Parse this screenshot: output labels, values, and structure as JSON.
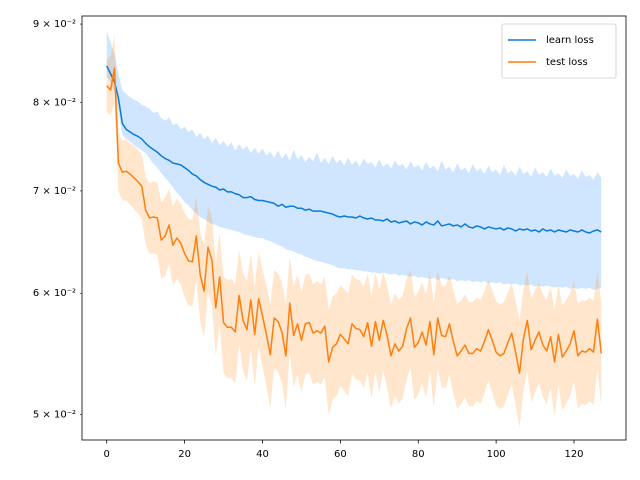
{
  "chart_data": {
    "type": "line",
    "y_scale": "log",
    "legend_loc": "upper right",
    "band_alpha": 0.22,
    "xlim": [
      -6.35,
      133.35
    ],
    "ylim": [
      0.0481,
      0.0911
    ],
    "xticks": [
      0,
      20,
      40,
      60,
      80,
      100,
      120
    ],
    "yticks": [
      {
        "value": 0.05,
        "label": "5 × 10⁻²"
      },
      {
        "value": 0.06,
        "label": "6 × 10⁻²"
      },
      {
        "value": 0.07,
        "label": "7 × 10⁻²"
      },
      {
        "value": 0.08,
        "label": "8 × 10⁻²"
      },
      {
        "value": 0.09,
        "label": "9 × 10⁻²"
      }
    ],
    "x": [
      0,
      1,
      2,
      3,
      4,
      5,
      6,
      7,
      8,
      9,
      10,
      11,
      12,
      13,
      14,
      15,
      16,
      17,
      18,
      19,
      20,
      21,
      22,
      23,
      24,
      25,
      26,
      27,
      28,
      29,
      30,
      31,
      32,
      33,
      34,
      35,
      36,
      37,
      38,
      39,
      40,
      41,
      42,
      43,
      44,
      45,
      46,
      47,
      48,
      49,
      50,
      51,
      52,
      53,
      54,
      55,
      56,
      57,
      58,
      59,
      60,
      61,
      62,
      63,
      64,
      65,
      66,
      67,
      68,
      69,
      70,
      71,
      72,
      73,
      74,
      75,
      76,
      77,
      78,
      79,
      80,
      81,
      82,
      83,
      84,
      85,
      86,
      87,
      88,
      89,
      90,
      91,
      92,
      93,
      94,
      95,
      96,
      97,
      98,
      99,
      100,
      101,
      102,
      103,
      104,
      105,
      106,
      107,
      108,
      109,
      110,
      111,
      112,
      113,
      114,
      115,
      116,
      117,
      118,
      119,
      120,
      121,
      122,
      123,
      124,
      125,
      126,
      127
    ],
    "series": [
      {
        "name": "learn loss",
        "color": "#0a7ad8",
        "band_color": "#2b8cff",
        "values": [
          0.0845,
          0.0835,
          0.0825,
          0.0805,
          0.0775,
          0.0768,
          0.0765,
          0.0762,
          0.076,
          0.0757,
          0.0752,
          0.0748,
          0.0745,
          0.0742,
          0.0738,
          0.0735,
          0.0733,
          0.073,
          0.0729,
          0.0728,
          0.0725,
          0.0722,
          0.0718,
          0.0716,
          0.0712,
          0.0709,
          0.0707,
          0.0705,
          0.0704,
          0.0701,
          0.0702,
          0.0699,
          0.0699,
          0.0697,
          0.0696,
          0.0693,
          0.0693,
          0.0694,
          0.0691,
          0.069,
          0.069,
          0.0689,
          0.0688,
          0.0687,
          0.0684,
          0.0686,
          0.0683,
          0.0684,
          0.0684,
          0.0682,
          0.0682,
          0.068,
          0.0681,
          0.0679,
          0.0679,
          0.0679,
          0.0678,
          0.0677,
          0.0676,
          0.0674,
          0.0673,
          0.0674,
          0.0673,
          0.0673,
          0.0672,
          0.0674,
          0.0672,
          0.0671,
          0.0672,
          0.067,
          0.067,
          0.0669,
          0.0671,
          0.0668,
          0.0669,
          0.0667,
          0.0668,
          0.0669,
          0.0666,
          0.0668,
          0.0667,
          0.0665,
          0.0668,
          0.0666,
          0.0665,
          0.0669,
          0.0664,
          0.0665,
          0.0666,
          0.0664,
          0.0665,
          0.0663,
          0.0666,
          0.0663,
          0.0662,
          0.0664,
          0.0663,
          0.0661,
          0.0663,
          0.0662,
          0.0661,
          0.0662,
          0.066,
          0.0662,
          0.0661,
          0.0659,
          0.0661,
          0.066,
          0.0661,
          0.0659,
          0.066,
          0.0658,
          0.0661,
          0.0659,
          0.066,
          0.0658,
          0.066,
          0.0659,
          0.0658,
          0.066,
          0.0659,
          0.0658,
          0.066,
          0.0658,
          0.0657,
          0.0659,
          0.066,
          0.0658
        ],
        "upper": [
          0.0891,
          0.0875,
          0.086,
          0.0835,
          0.0815,
          0.081,
          0.0806,
          0.0803,
          0.0801,
          0.0797,
          0.0795,
          0.0792,
          0.0787,
          0.0789,
          0.0781,
          0.0778,
          0.0782,
          0.0773,
          0.0775,
          0.0768,
          0.0771,
          0.0765,
          0.0768,
          0.0759,
          0.0764,
          0.0757,
          0.0761,
          0.0752,
          0.0758,
          0.075,
          0.0755,
          0.0748,
          0.0753,
          0.0744,
          0.0751,
          0.0745,
          0.0749,
          0.0741,
          0.0747,
          0.074,
          0.0746,
          0.0738,
          0.0743,
          0.0736,
          0.0744,
          0.0735,
          0.0741,
          0.0733,
          0.0745,
          0.0734,
          0.0739,
          0.0731,
          0.0737,
          0.0732,
          0.0742,
          0.073,
          0.0736,
          0.0729,
          0.0738,
          0.073,
          0.0734,
          0.0727,
          0.0736,
          0.0728,
          0.0733,
          0.0726,
          0.0735,
          0.0729,
          0.0731,
          0.0725,
          0.0734,
          0.0726,
          0.073,
          0.0724,
          0.0733,
          0.0727,
          0.0729,
          0.0723,
          0.0732,
          0.0725,
          0.0728,
          0.0722,
          0.0731,
          0.0724,
          0.0727,
          0.0721,
          0.0733,
          0.0723,
          0.0726,
          0.072,
          0.073,
          0.0722,
          0.0725,
          0.0719,
          0.0729,
          0.0721,
          0.0724,
          0.0718,
          0.0727,
          0.072,
          0.0723,
          0.0717,
          0.0728,
          0.0719,
          0.0722,
          0.0716,
          0.0726,
          0.0718,
          0.0721,
          0.0715,
          0.0725,
          0.0717,
          0.072,
          0.0715,
          0.0724,
          0.0716,
          0.0719,
          0.0714,
          0.0723,
          0.0716,
          0.0718,
          0.0713,
          0.0722,
          0.0715,
          0.0717,
          0.0712,
          0.072,
          0.0714
        ],
        "lower": [
          0.0832,
          0.0825,
          0.0812,
          0.079,
          0.0762,
          0.0757,
          0.0754,
          0.075,
          0.0747,
          0.0744,
          0.0741,
          0.0735,
          0.0729,
          0.0725,
          0.0719,
          0.0714,
          0.0709,
          0.0704,
          0.0698,
          0.0694,
          0.0688,
          0.0685,
          0.068,
          0.0677,
          0.0673,
          0.0671,
          0.0668,
          0.0666,
          0.0665,
          0.0663,
          0.0662,
          0.0661,
          0.066,
          0.0659,
          0.0658,
          0.0656,
          0.0655,
          0.0654,
          0.0653,
          0.0652,
          0.0652,
          0.065,
          0.0649,
          0.0647,
          0.0645,
          0.0644,
          0.0641,
          0.064,
          0.0639,
          0.0637,
          0.0636,
          0.0634,
          0.0633,
          0.0631,
          0.063,
          0.0629,
          0.0628,
          0.0627,
          0.0626,
          0.0624,
          0.0623,
          0.0623,
          0.0622,
          0.0622,
          0.0621,
          0.0621,
          0.062,
          0.062,
          0.0619,
          0.0619,
          0.0618,
          0.0619,
          0.0618,
          0.0617,
          0.0618,
          0.0616,
          0.0617,
          0.0616,
          0.0615,
          0.0616,
          0.0614,
          0.0615,
          0.0614,
          0.0613,
          0.0614,
          0.0612,
          0.0614,
          0.0613,
          0.0612,
          0.0613,
          0.0611,
          0.0612,
          0.0611,
          0.0612,
          0.061,
          0.0611,
          0.061,
          0.0611,
          0.0609,
          0.061,
          0.0609,
          0.061,
          0.0608,
          0.0609,
          0.0608,
          0.0609,
          0.0607,
          0.0608,
          0.0607,
          0.0608,
          0.0606,
          0.0607,
          0.0606,
          0.0607,
          0.0606,
          0.0605,
          0.0606,
          0.0605,
          0.0606,
          0.0604,
          0.0605,
          0.0604,
          0.0605,
          0.0604,
          0.0605,
          0.0603,
          0.0604,
          0.0605
        ]
      },
      {
        "name": "test loss",
        "color": "#ff7f0e",
        "band_color": "#ff8c1a",
        "values": [
          0.082,
          0.0815,
          0.0842,
          0.073,
          0.072,
          0.0721,
          0.0718,
          0.0714,
          0.071,
          0.0705,
          0.068,
          0.0672,
          0.0673,
          0.0672,
          0.065,
          0.0654,
          0.0665,
          0.0645,
          0.0652,
          0.0647,
          0.0637,
          0.063,
          0.0629,
          0.0654,
          0.0617,
          0.0602,
          0.0643,
          0.0631,
          0.0587,
          0.0615,
          0.0574,
          0.057,
          0.057,
          0.0566,
          0.0598,
          0.0576,
          0.0568,
          0.0594,
          0.0564,
          0.0595,
          0.058,
          0.0564,
          0.0547,
          0.0578,
          0.0575,
          0.0566,
          0.0546,
          0.0591,
          0.0563,
          0.0573,
          0.0559,
          0.0573,
          0.0574,
          0.0565,
          0.0567,
          0.0565,
          0.0571,
          0.0541,
          0.0553,
          0.0556,
          0.0564,
          0.056,
          0.0556,
          0.0573,
          0.0569,
          0.0568,
          0.0562,
          0.0574,
          0.0554,
          0.0575,
          0.0559,
          0.0576,
          0.0563,
          0.0546,
          0.0556,
          0.055,
          0.0554,
          0.0569,
          0.0578,
          0.0553,
          0.0557,
          0.0566,
          0.0555,
          0.0575,
          0.0547,
          0.0578,
          0.0563,
          0.0562,
          0.0573,
          0.0558,
          0.0546,
          0.055,
          0.0555,
          0.0548,
          0.0548,
          0.0552,
          0.055,
          0.0558,
          0.0568,
          0.0559,
          0.0549,
          0.0546,
          0.0548,
          0.0557,
          0.0565,
          0.0549,
          0.0532,
          0.056,
          0.0576,
          0.0551,
          0.0559,
          0.0566,
          0.0555,
          0.055,
          0.0562,
          0.0541,
          0.0564,
          0.0545,
          0.055,
          0.0556,
          0.0567,
          0.0546,
          0.055,
          0.0549,
          0.0552,
          0.0549,
          0.0577,
          0.0548
        ],
        "upper": [
          0.0852,
          0.0858,
          0.0885,
          0.0765,
          0.0755,
          0.0756,
          0.0752,
          0.0749,
          0.0745,
          0.074,
          0.0715,
          0.0708,
          0.071,
          0.0709,
          0.0688,
          0.0693,
          0.0702,
          0.0684,
          0.0692,
          0.0687,
          0.0677,
          0.0671,
          0.067,
          0.0695,
          0.0658,
          0.0644,
          0.0685,
          0.0674,
          0.0628,
          0.0657,
          0.0615,
          0.0612,
          0.0613,
          0.0608,
          0.064,
          0.0619,
          0.0611,
          0.0637,
          0.0606,
          0.0638,
          0.0622,
          0.0607,
          0.059,
          0.0621,
          0.0618,
          0.061,
          0.059,
          0.0635,
          0.0606,
          0.0617,
          0.0601,
          0.0617,
          0.0618,
          0.0608,
          0.0611,
          0.0608,
          0.0615,
          0.0585,
          0.0597,
          0.06,
          0.0607,
          0.0604,
          0.06,
          0.0617,
          0.0613,
          0.0612,
          0.0606,
          0.0618,
          0.0598,
          0.0619,
          0.0603,
          0.062,
          0.0607,
          0.059,
          0.06,
          0.0594,
          0.0598,
          0.0613,
          0.0622,
          0.0597,
          0.0601,
          0.061,
          0.0599,
          0.0619,
          0.0591,
          0.0622,
          0.0607,
          0.0606,
          0.0617,
          0.0602,
          0.059,
          0.0594,
          0.0599,
          0.0592,
          0.0592,
          0.0596,
          0.0594,
          0.0602,
          0.0612,
          0.0603,
          0.0593,
          0.059,
          0.0592,
          0.0601,
          0.0609,
          0.0593,
          0.0576,
          0.0604,
          0.062,
          0.0595,
          0.0603,
          0.061,
          0.0599,
          0.0594,
          0.0606,
          0.0585,
          0.0608,
          0.0589,
          0.0594,
          0.06,
          0.0611,
          0.059,
          0.0594,
          0.0593,
          0.0596,
          0.0593,
          0.0621,
          0.0592
        ],
        "lower": [
          0.0788,
          0.0785,
          0.08,
          0.07,
          0.069,
          0.069,
          0.0686,
          0.0681,
          0.0677,
          0.0671,
          0.0646,
          0.0637,
          0.0637,
          0.0636,
          0.0613,
          0.0616,
          0.0627,
          0.0607,
          0.0613,
          0.0608,
          0.0597,
          0.0589,
          0.0588,
          0.0612,
          0.0576,
          0.0561,
          0.0601,
          0.0589,
          0.0546,
          0.0573,
          0.0532,
          0.0528,
          0.0528,
          0.0524,
          0.0556,
          0.0534,
          0.0526,
          0.0552,
          0.0522,
          0.0553,
          0.0538,
          0.0522,
          0.0505,
          0.0536,
          0.0533,
          0.0524,
          0.0504,
          0.0549,
          0.0521,
          0.0531,
          0.0517,
          0.0531,
          0.0532,
          0.0523,
          0.0525,
          0.0523,
          0.0529,
          0.0499,
          0.0511,
          0.0514,
          0.0522,
          0.0518,
          0.0514,
          0.0531,
          0.0527,
          0.0526,
          0.052,
          0.0532,
          0.0512,
          0.0533,
          0.0517,
          0.0534,
          0.0521,
          0.0504,
          0.0514,
          0.0508,
          0.0512,
          0.0527,
          0.0536,
          0.0511,
          0.0515,
          0.0524,
          0.0513,
          0.0533,
          0.0505,
          0.0536,
          0.0521,
          0.052,
          0.0531,
          0.0516,
          0.0504,
          0.0508,
          0.0513,
          0.0506,
          0.0506,
          0.051,
          0.0508,
          0.0516,
          0.0526,
          0.0517,
          0.0507,
          0.0504,
          0.0506,
          0.0515,
          0.0523,
          0.0507,
          0.049,
          0.0518,
          0.0534,
          0.0509,
          0.0517,
          0.0524,
          0.0513,
          0.0508,
          0.052,
          0.0499,
          0.0522,
          0.0503,
          0.0508,
          0.0514,
          0.0525,
          0.0504,
          0.0508,
          0.0507,
          0.051,
          0.0507,
          0.0535,
          0.0506
        ]
      }
    ]
  }
}
